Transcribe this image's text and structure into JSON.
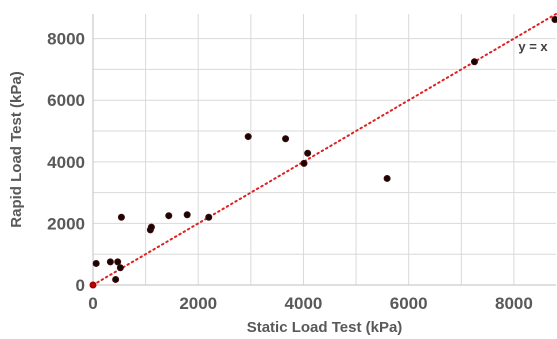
{
  "chart_data": {
    "type": "scatter",
    "title": "",
    "xlabel": "Static Load Test (kPa)",
    "ylabel": "Rapid Load Test (kPa)",
    "xlim": [
      0,
      8800
    ],
    "ylim": [
      0,
      8800
    ],
    "x_ticks": [
      0,
      2000,
      4000,
      6000,
      8000
    ],
    "y_ticks": [
      0,
      2000,
      4000,
      6000,
      8000
    ],
    "x_tick_labels": [
      "0",
      "2000",
      "4000",
      "6000",
      "8000"
    ],
    "y_tick_labels": [
      "0",
      "2000",
      "4000",
      "6000",
      "8000"
    ],
    "grid": true,
    "reference_line": {
      "label": "y = x",
      "from": [
        0,
        0
      ],
      "to": [
        8800,
        8800
      ],
      "color": "#e02020",
      "style": "dotted"
    },
    "series": [
      {
        "points": [
          {
            "x": 60,
            "y": 700
          },
          {
            "x": 330,
            "y": 750
          },
          {
            "x": 430,
            "y": 180
          },
          {
            "x": 470,
            "y": 750
          },
          {
            "x": 520,
            "y": 560
          },
          {
            "x": 540,
            "y": 2200
          },
          {
            "x": 1090,
            "y": 1790
          },
          {
            "x": 1110,
            "y": 1880
          },
          {
            "x": 1440,
            "y": 2250
          },
          {
            "x": 1790,
            "y": 2280
          },
          {
            "x": 2200,
            "y": 2200
          },
          {
            "x": 2950,
            "y": 4820
          },
          {
            "x": 3660,
            "y": 4750
          },
          {
            "x": 4010,
            "y": 3950
          },
          {
            "x": 4080,
            "y": 4280
          },
          {
            "x": 5590,
            "y": 3460
          },
          {
            "x": 7250,
            "y": 7250
          },
          {
            "x": 8780,
            "y": 8620
          }
        ],
        "color": "#1a0505"
      }
    ],
    "origin_marker": {
      "x": 0,
      "y": 0,
      "color": "#c00000"
    }
  }
}
